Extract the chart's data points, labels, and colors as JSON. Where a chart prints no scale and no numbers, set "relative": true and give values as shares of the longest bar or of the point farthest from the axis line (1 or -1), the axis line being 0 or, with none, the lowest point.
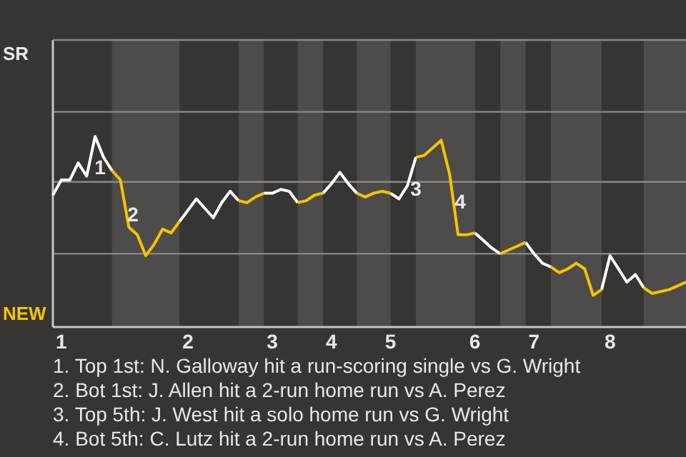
{
  "chart_data": {
    "type": "line",
    "relative": true,
    "categories": [
      null,
      "1",
      null,
      null,
      null,
      null,
      null,
      null,
      null,
      null,
      null,
      null,
      null,
      null,
      null,
      null,
      "2",
      null,
      null,
      null,
      null,
      null,
      null,
      null,
      null,
      null,
      "3",
      null,
      null,
      null,
      null,
      null,
      null,
      "4",
      null,
      null,
      null,
      null,
      null,
      null,
      "5",
      null,
      null,
      null,
      null,
      null,
      null,
      null,
      null,
      null,
      "6",
      null,
      null,
      null,
      null,
      null,
      null,
      "7",
      null,
      null,
      null,
      null,
      null,
      null,
      null,
      null,
      "8",
      null,
      null,
      null,
      null,
      null,
      null,
      null,
      null,
      null
    ],
    "series": [
      {
        "color": "#ffffff",
        "values": [
          0.69,
          0.77,
          0.77,
          0.86,
          0.79,
          1,
          0.89,
          0.82,
          null,
          null,
          null,
          null,
          null,
          null,
          null,
          0.55,
          0.61,
          0.67,
          0.62,
          0.57,
          0.65,
          0.71,
          0.66,
          null,
          null,
          0.7,
          0.7,
          0.72,
          0.71,
          0.65,
          null,
          null,
          0.7,
          0.75,
          0.81,
          0.75,
          0.7,
          null,
          null,
          null,
          0.7,
          0.67,
          0.74,
          0.89,
          null,
          null,
          null,
          null,
          null,
          null,
          0.49,
          0.45,
          0.41,
          0.38,
          null,
          null,
          0.44,
          0.38,
          0.33,
          0.31,
          null,
          null,
          null,
          null,
          null,
          0.19,
          0.37,
          0.3,
          0.23,
          0.27,
          0.2,
          null,
          null,
          null,
          null,
          null
        ]
      },
      {
        "color": "#f5c400",
        "values": [
          null,
          null,
          null,
          null,
          null,
          null,
          null,
          0.82,
          0.77,
          0.52,
          0.48,
          0.37,
          0.43,
          0.51,
          0.49,
          0.55,
          null,
          null,
          null,
          null,
          null,
          null,
          0.66,
          0.65,
          0.68,
          0.7,
          null,
          null,
          null,
          0.65,
          0.66,
          0.69,
          0.7,
          null,
          null,
          null,
          0.7,
          0.68,
          0.7,
          0.71,
          0.7,
          null,
          null,
          0.89,
          0.9,
          0.94,
          0.98,
          0.8,
          0.48,
          0.48,
          0.49,
          null,
          null,
          0.38,
          0.4,
          0.42,
          0.44,
          null,
          null,
          0.31,
          0.28,
          0.3,
          0.33,
          0.3,
          0.16,
          0.19,
          null,
          null,
          null,
          null,
          0.2,
          0.17,
          0.18,
          0.19,
          0.21,
          0.23
        ]
      }
    ],
    "line_style": "solid",
    "marker": "none",
    "ref_lines": [
      {
        "axis": "y",
        "value": 0.38,
        "color": "#8a8886"
      },
      {
        "axis": "y",
        "value": 0.76,
        "color": "#8a8886"
      },
      {
        "axis": "y",
        "value": 1.13,
        "color": "#8a8886"
      }
    ],
    "annotations": [
      "SR",
      "NEW",
      "1",
      "2",
      "3",
      "4",
      "1. Top 1st: N. Galloway hit a run-scoring single vs G. Wright",
      "2. Bot 1st: J. Allen hit a 2-run home run vs A. Perez",
      "3. Top 5th: J. West hit a solo home run vs G. Wright",
      "4. Bot 5th: C. Lutz hit a 2-run home run vs A. Perez"
    ]
  }
}
